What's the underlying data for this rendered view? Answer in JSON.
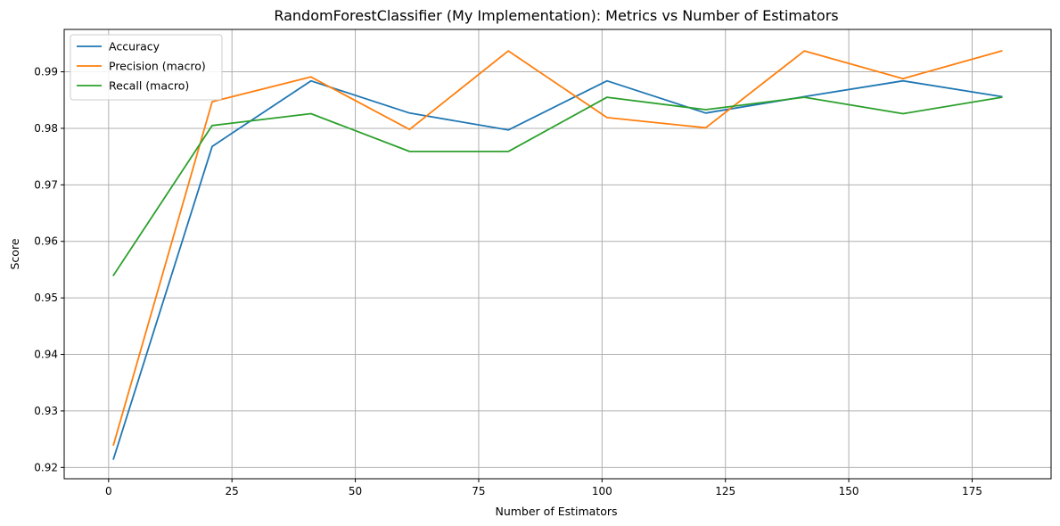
{
  "chart_data": {
    "type": "line",
    "title": "RandomForestClassifier (My Implementation): Metrics vs Number of Estimators",
    "xlabel": "Number of Estimators",
    "ylabel": "Score",
    "x": [
      1,
      21,
      41,
      61,
      81,
      101,
      121,
      141,
      161,
      181
    ],
    "xlim": [
      -9,
      191
    ],
    "ylim": [
      0.918,
      0.9975
    ],
    "xticks": [
      0,
      25,
      50,
      75,
      100,
      125,
      150,
      175
    ],
    "xtick_labels": [
      "0",
      "25",
      "50",
      "75",
      "100",
      "125",
      "150",
      "175"
    ],
    "yticks": [
      0.92,
      0.93,
      0.94,
      0.95,
      0.96,
      0.97,
      0.98,
      0.99
    ],
    "ytick_labels": [
      "0.92",
      "0.93",
      "0.94",
      "0.95",
      "0.96",
      "0.97",
      "0.98",
      "0.99"
    ],
    "grid": true,
    "legend_position": "top-left",
    "series": [
      {
        "name": "Accuracy",
        "color": "#1f77b4",
        "values": [
          0.9215,
          0.9768,
          0.9884,
          0.9827,
          0.9797,
          0.9884,
          0.9827,
          0.9856,
          0.9884,
          0.9856
        ]
      },
      {
        "name": "Precision (macro)",
        "color": "#ff7f0e",
        "values": [
          0.924,
          0.9847,
          0.9891,
          0.9798,
          0.9937,
          0.9819,
          0.9801,
          0.9937,
          0.9888,
          0.9937
        ]
      },
      {
        "name": "Recall (macro)",
        "color": "#2ca02c",
        "values": [
          0.954,
          0.9805,
          0.9826,
          0.9759,
          0.9759,
          0.9855,
          0.9833,
          0.9855,
          0.9826,
          0.9855
        ]
      }
    ]
  }
}
